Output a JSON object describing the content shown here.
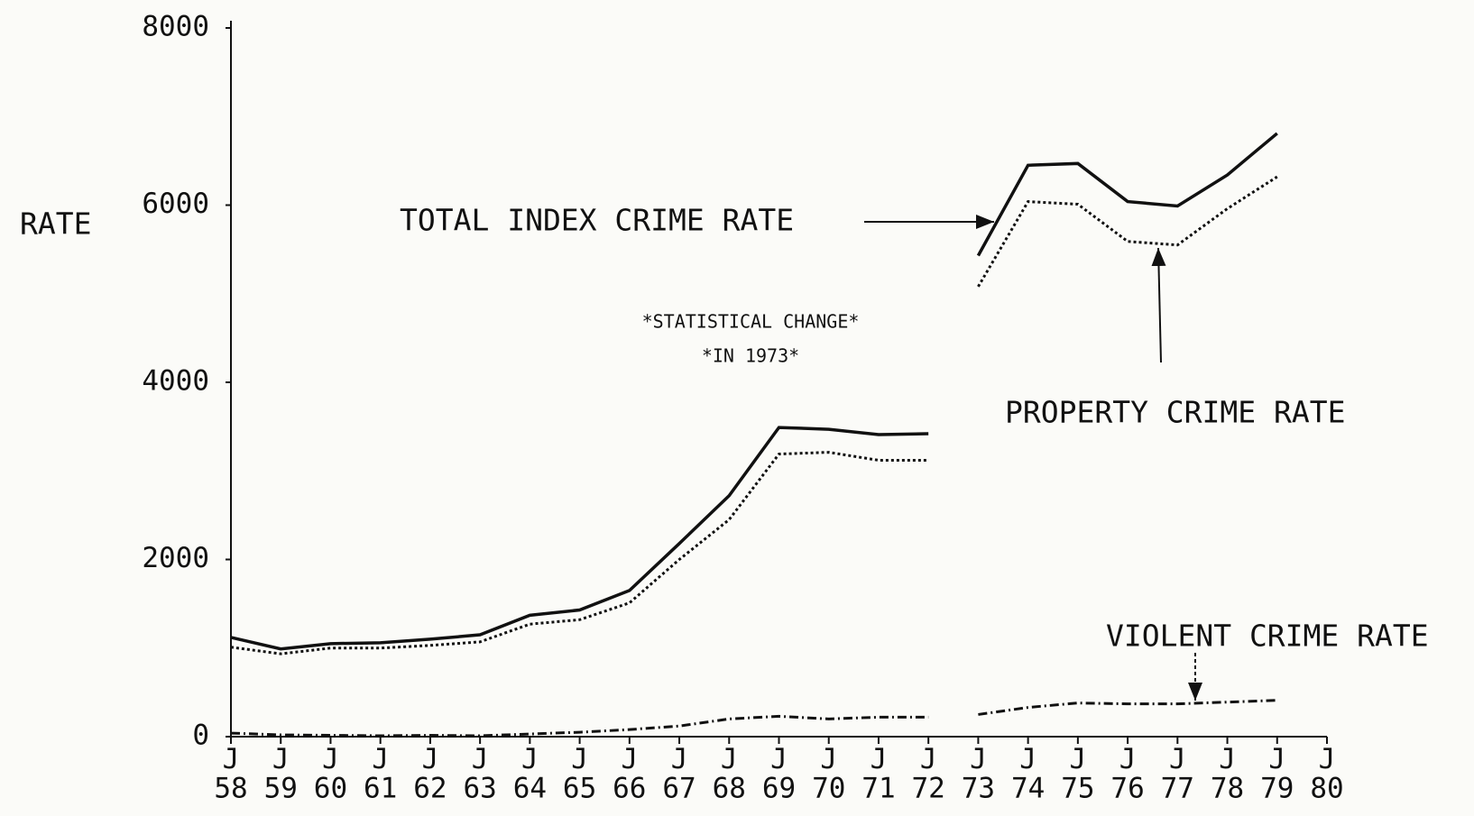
{
  "chart_data": {
    "type": "line",
    "y_axis_label": "RATE",
    "annotations": [
      "*STATISTICAL CHANGE*",
      "*IN 1973*"
    ],
    "categories": [
      "J 58",
      "J 59",
      "J 60",
      "J 61",
      "J 62",
      "J 63",
      "J 64",
      "J 65",
      "J 66",
      "J 67",
      "J 68",
      "J 69",
      "J 70",
      "J 71",
      "J 72",
      "J 73",
      "J 74",
      "J 75",
      "J 76",
      "J 77",
      "J 78",
      "J 79",
      "J 80"
    ],
    "break_before": "J 73",
    "series": [
      {
        "name": "TOTAL INDEX CRIME RATE",
        "color": "#111111",
        "style": "solid",
        "values": [
          1120,
          990,
          1050,
          1060,
          1100,
          1150,
          1370,
          1430,
          1650,
          2180,
          2720,
          3490,
          3470,
          3410,
          3420,
          5430,
          6450,
          6470,
          6040,
          5990,
          6340,
          6810,
          null
        ]
      },
      {
        "name": "PROPERTY CRIME RATE",
        "color": "#111111",
        "style": "dotted",
        "values": [
          1010,
          935,
          1000,
          1000,
          1030,
          1070,
          1270,
          1320,
          1510,
          2000,
          2450,
          3190,
          3210,
          3120,
          3120,
          5080,
          6040,
          6010,
          5590,
          5550,
          5960,
          6320,
          null
        ]
      },
      {
        "name": "VIOLENT CRIME RATE",
        "color": "#111111",
        "style": "dashdot",
        "values": [
          40,
          20,
          15,
          10,
          15,
          10,
          30,
          50,
          80,
          120,
          200,
          230,
          200,
          220,
          220,
          250,
          330,
          380,
          370,
          370,
          390,
          410,
          null
        ]
      }
    ],
    "ylim": [
      0,
      8000
    ],
    "yticks": [
      0,
      2000,
      4000,
      6000,
      8000
    ],
    "grid": false
  }
}
